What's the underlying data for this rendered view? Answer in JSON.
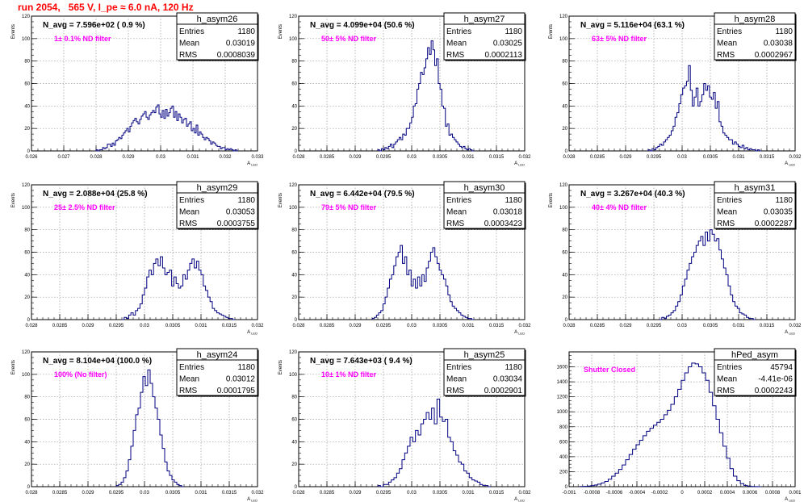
{
  "title": "run 2054,   565 V, I_pe ≈ 6.0 nA, 120 Hz",
  "colors": {
    "title": "#ff0000",
    "histogram": "#000080",
    "filter_label": "#ff00ff",
    "grid": "#999999"
  },
  "stats_labels": {
    "entries": "Entries",
    "mean": "Mean",
    "rms": "RMS"
  },
  "chart_data": [
    {
      "type": "histogram",
      "name": "h_asym26",
      "navg_label": "N_avg = 7.596e+02 ( 0.9 %)",
      "filter_label": "1± 0.1% ND filter",
      "stats": {
        "entries": "1180",
        "mean": "0.03019",
        "rms": "0.0008039"
      },
      "ylabel": "Events",
      "xlabel": "A_LED",
      "xlim": [
        0.026,
        0.033
      ],
      "ylim": [
        0,
        120
      ],
      "xticks": [
        "0.026",
        "0.027",
        "0.028",
        "0.029",
        "0.03",
        "0.031",
        "0.032",
        "0.033"
      ],
      "xtick_values": [
        0.026,
        0.027,
        0.028,
        0.029,
        0.03,
        0.031,
        0.032,
        0.033
      ],
      "yticks": [
        0,
        20,
        40,
        60,
        80,
        100,
        120
      ],
      "bins_range": [
        0.028,
        0.0324
      ],
      "values": [
        1,
        0,
        1,
        1,
        3,
        2,
        3,
        6,
        6,
        4,
        7,
        5,
        9,
        10,
        12,
        11,
        14,
        16,
        18,
        20,
        17,
        22,
        25,
        27,
        29,
        26,
        24,
        28,
        31,
        33,
        35,
        30,
        28,
        32,
        34,
        36,
        34,
        39,
        41,
        33,
        30,
        36,
        29,
        37,
        31,
        34,
        38,
        40,
        30,
        35,
        27,
        33,
        30,
        25,
        28,
        29,
        22,
        24,
        26,
        18,
        20,
        16,
        23,
        14,
        17,
        15,
        12,
        10,
        12,
        11,
        9,
        6,
        8,
        7,
        5,
        4,
        4,
        2,
        3,
        3,
        1,
        2,
        1,
        2,
        1,
        0,
        1,
        0
      ]
    },
    {
      "type": "histogram",
      "name": "h_asym27",
      "navg_label": "N_avg = 4.099e+04 (50.6 %)",
      "filter_label": "50± 5% ND filter",
      "stats": {
        "entries": "1180",
        "mean": "0.03025",
        "rms": "0.0002113"
      },
      "ylabel": "Events",
      "xlabel": "A_LED",
      "xlim": [
        0.028,
        0.032
      ],
      "ylim": [
        0,
        120
      ],
      "xticks": [
        "0.028",
        "0.0285",
        "0.029",
        "0.0295",
        "0.03",
        "0.0305",
        "0.031",
        "0.0315",
        "0.032"
      ],
      "xtick_values": [
        0.028,
        0.0285,
        0.029,
        0.0295,
        0.03,
        0.0305,
        0.031,
        0.0315,
        0.032
      ],
      "yticks": [
        0,
        20,
        40,
        60,
        80,
        100,
        120
      ],
      "bins_range": [
        0.0294,
        0.0311
      ],
      "values": [
        1,
        0,
        2,
        1,
        3,
        2,
        4,
        6,
        3,
        6,
        8,
        10,
        12,
        10,
        15,
        14,
        20,
        20,
        25,
        30,
        40,
        42,
        55,
        60,
        70,
        68,
        74,
        82,
        92,
        86,
        98,
        90,
        76,
        82,
        60,
        55,
        40,
        38,
        22,
        24,
        14,
        15,
        12,
        10,
        8,
        6,
        4,
        3,
        4,
        2,
        1,
        2,
        1,
        0
      ]
    },
    {
      "type": "histogram",
      "name": "h_asym28",
      "navg_label": "N_avg = 5.116e+04 (63.1 %)",
      "filter_label": "63± 5% ND filter",
      "stats": {
        "entries": "1180",
        "mean": "0.03038",
        "rms": "0.0002967"
      },
      "ylabel": "Events",
      "xlabel": "A_LED",
      "xlim": [
        0.028,
        0.032
      ],
      "ylim": [
        0,
        120
      ],
      "xticks": [
        "0.028",
        "0.0285",
        "0.029",
        "0.0295",
        "0.03",
        "0.0305",
        "0.031",
        "0.0315",
        "0.032"
      ],
      "xtick_values": [
        0.028,
        0.0285,
        0.029,
        0.0295,
        0.03,
        0.0305,
        0.031,
        0.0315,
        0.032
      ],
      "yticks": [
        0,
        20,
        40,
        60,
        80,
        100,
        120
      ],
      "bins_range": [
        0.0294,
        0.0314
      ],
      "values": [
        1,
        0,
        2,
        1,
        3,
        4,
        6,
        5,
        8,
        10,
        12,
        14,
        18,
        22,
        30,
        34,
        42,
        50,
        56,
        58,
        62,
        76,
        54,
        40,
        48,
        56,
        40,
        44,
        50,
        60,
        54,
        58,
        48,
        46,
        52,
        38,
        44,
        26,
        22,
        16,
        14,
        12,
        10,
        10,
        6,
        8,
        6,
        4,
        3,
        5,
        2,
        3,
        1,
        2,
        1,
        1,
        0,
        1,
        0
      ]
    },
    {
      "type": "histogram",
      "name": "h_asym29",
      "navg_label": "N_avg = 2.088e+04 (25.8 %)",
      "filter_label": "25± 2.5% ND filter",
      "stats": {
        "entries": "1180",
        "mean": "0.03053",
        "rms": "0.0003755"
      },
      "ylabel": "Events",
      "xlabel": "A_LED",
      "xlim": [
        0.028,
        0.032
      ],
      "ylim": [
        0,
        120
      ],
      "xticks": [
        "0.028",
        "0.0285",
        "0.029",
        "0.0295",
        "0.03",
        "0.0305",
        "0.031",
        "0.0315",
        "0.032"
      ],
      "xtick_values": [
        0.028,
        0.0285,
        0.029,
        0.0295,
        0.03,
        0.0305,
        0.031,
        0.0315,
        0.032
      ],
      "yticks": [
        0,
        20,
        40,
        60,
        80,
        100,
        120
      ],
      "bins_range": [
        0.0296,
        0.0316
      ],
      "values": [
        0,
        2,
        1,
        4,
        6,
        4,
        8,
        10,
        14,
        22,
        28,
        38,
        44,
        40,
        50,
        54,
        48,
        56,
        46,
        40,
        42,
        44,
        30,
        38,
        32,
        28,
        30,
        40,
        36,
        44,
        50,
        54,
        46,
        52,
        44,
        40,
        30,
        26,
        20,
        16,
        10,
        8,
        6,
        5,
        4,
        3,
        2,
        1,
        1,
        0
      ]
    },
    {
      "type": "histogram",
      "name": "h_asym30",
      "navg_label": "N_avg = 6.442e+04 (79.5 %)",
      "filter_label": "79± 5% ND filter",
      "stats": {
        "entries": "1180",
        "mean": "0.03018",
        "rms": "0.0003423"
      },
      "ylabel": "Events",
      "xlabel": "A_LED",
      "xlim": [
        0.028,
        0.032
      ],
      "ylim": [
        0,
        120
      ],
      "xticks": [
        "0.028",
        "0.0285",
        "0.029",
        "0.0295",
        "0.03",
        "0.0305",
        "0.031",
        "0.0315",
        "0.032"
      ],
      "xtick_values": [
        0.028,
        0.0285,
        0.029,
        0.0295,
        0.03,
        0.0305,
        0.031,
        0.0315,
        0.032
      ],
      "yticks": [
        0,
        20,
        40,
        60,
        80,
        100,
        120
      ],
      "bins_range": [
        0.0293,
        0.0311
      ],
      "values": [
        1,
        2,
        4,
        6,
        8,
        14,
        20,
        28,
        36,
        40,
        48,
        56,
        60,
        66,
        50,
        56,
        40,
        44,
        30,
        36,
        28,
        38,
        30,
        40,
        34,
        46,
        52,
        60,
        64,
        56,
        50,
        44,
        40,
        36,
        30,
        22,
        16,
        12,
        10,
        8,
        6,
        4,
        3,
        2,
        1,
        1,
        0
      ]
    },
    {
      "type": "histogram",
      "name": "h_asym31",
      "navg_label": "N_avg = 3.267e+04 (40.3 %)",
      "filter_label": "40± 4% ND filter",
      "stats": {
        "entries": "1180",
        "mean": "0.03035",
        "rms": "0.0002287"
      },
      "ylabel": "Events",
      "xlabel": "A_LED",
      "xlim": [
        0.028,
        0.032
      ],
      "ylim": [
        0,
        120
      ],
      "xticks": [
        "0.028",
        "0.0285",
        "0.029",
        "0.0295",
        "0.03",
        "0.0305",
        "0.031",
        "0.0315",
        "0.032"
      ],
      "xtick_values": [
        0.028,
        0.0285,
        0.029,
        0.0295,
        0.03,
        0.0305,
        0.031,
        0.0315,
        0.032
      ],
      "yticks": [
        0,
        20,
        40,
        60,
        80,
        100,
        120
      ],
      "bins_range": [
        0.0296,
        0.0313
      ],
      "values": [
        0,
        2,
        1,
        3,
        4,
        6,
        8,
        12,
        16,
        22,
        30,
        36,
        44,
        50,
        56,
        60,
        66,
        70,
        74,
        66,
        78,
        70,
        80,
        76,
        70,
        72,
        62,
        54,
        46,
        40,
        30,
        22,
        16,
        12,
        10,
        6,
        5,
        4,
        2,
        1,
        1,
        0
      ]
    },
    {
      "type": "histogram",
      "name": "h_asym24",
      "navg_label": "N_avg = 8.104e+04 (100.0 %)",
      "filter_label": "100% (No filter)",
      "stats": {
        "entries": "1180",
        "mean": "0.03012",
        "rms": "0.0001795"
      },
      "ylabel": "Events",
      "xlabel": "A_LED",
      "xlim": [
        0.028,
        0.032
      ],
      "ylim": [
        0,
        120
      ],
      "xticks": [
        "0.028",
        "0.0285",
        "0.029",
        "0.0295",
        "0.03",
        "0.0305",
        "0.031",
        "0.0315",
        "0.032"
      ],
      "xtick_values": [
        0.028,
        0.0285,
        0.029,
        0.0295,
        0.03,
        0.0305,
        0.031,
        0.0315,
        0.032
      ],
      "yticks": [
        0,
        20,
        40,
        60,
        80,
        100,
        120
      ],
      "bins_range": [
        0.0295,
        0.0307
      ],
      "values": [
        1,
        2,
        4,
        8,
        14,
        24,
        36,
        50,
        64,
        70,
        84,
        98,
        90,
        104,
        92,
        80,
        70,
        60,
        46,
        34,
        22,
        14,
        10,
        6,
        4,
        2,
        1,
        0
      ]
    },
    {
      "type": "histogram",
      "name": "h_asym25",
      "navg_label": "N_avg = 7.643e+03 ( 9.4 %)",
      "filter_label": "10± 1% ND filter",
      "stats": {
        "entries": "1180",
        "mean": "0.03034",
        "rms": "0.0002901"
      },
      "ylabel": "Events",
      "xlabel": "A_LED",
      "xlim": [
        0.028,
        0.032
      ],
      "ylim": [
        0,
        120
      ],
      "xticks": [
        "0.028",
        "0.0285",
        "0.029",
        "0.0295",
        "0.03",
        "0.0305",
        "0.031",
        "0.0315",
        "0.032"
      ],
      "xtick_values": [
        0.028,
        0.0285,
        0.029,
        0.0295,
        0.03,
        0.0305,
        0.031,
        0.0315,
        0.032
      ],
      "yticks": [
        0,
        20,
        40,
        60,
        80,
        100,
        120
      ],
      "bins_range": [
        0.0294,
        0.0314
      ],
      "values": [
        1,
        0,
        2,
        2,
        4,
        6,
        8,
        12,
        16,
        24,
        30,
        36,
        44,
        40,
        50,
        46,
        56,
        60,
        66,
        60,
        70,
        56,
        78,
        62,
        58,
        60,
        44,
        40,
        32,
        28,
        22,
        20,
        14,
        12,
        8,
        6,
        5,
        4,
        2,
        1,
        1,
        0
      ]
    },
    {
      "type": "histogram",
      "name": "hPed_asym",
      "navg_label": "",
      "filter_label": "Shutter Closed",
      "stats": {
        "entries": "45794",
        "mean": "-4.41e-06",
        "rms": "0.0002243"
      },
      "ylabel": "",
      "xlabel": "A_LED",
      "xlim": [
        -0.001,
        0.001
      ],
      "ylim": [
        0,
        1800
      ],
      "xticks": [
        "-0.001",
        "-0.0008",
        "-0.0006",
        "-0.0004",
        "-0.0002",
        "0",
        "0.0002",
        "0.0004",
        "0.0006",
        "0.0008",
        "0.001"
      ],
      "xtick_values": [
        -0.001,
        -0.0008,
        -0.0006,
        -0.0004,
        -0.0002,
        0,
        0.0002,
        0.0004,
        0.0006,
        0.0008,
        0.001
      ],
      "yticks": [
        0,
        200,
        400,
        600,
        800,
        1000,
        1200,
        1400,
        1600
      ],
      "bins_range": [
        -0.0009,
        0.0007
      ],
      "values": [
        2,
        4,
        8,
        14,
        22,
        34,
        50,
        70,
        100,
        140,
        180,
        230,
        290,
        360,
        430,
        500,
        560,
        620,
        680,
        740,
        780,
        820,
        860,
        900,
        960,
        1020,
        1100,
        1200,
        1300,
        1420,
        1520,
        1600,
        1650,
        1640,
        1600,
        1520,
        1420,
        1260,
        1080,
        900,
        720,
        540,
        380,
        240,
        140,
        80,
        40,
        18,
        8,
        3,
        1,
        0
      ]
    }
  ]
}
